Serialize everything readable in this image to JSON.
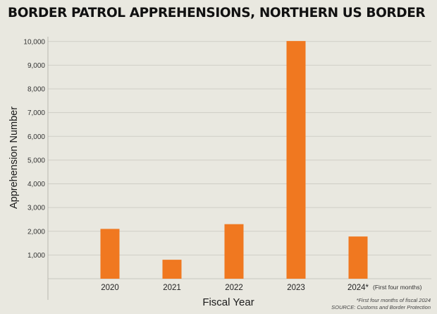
{
  "chart_data": {
    "type": "bar",
    "title": "BORDER PATROL APPREHENSIONS, NORTHERN US BORDER",
    "xlabel": "Fiscal Year",
    "ylabel": "Apprehension Number",
    "categories": [
      "2020",
      "2021",
      "2022",
      "2023",
      "2024*"
    ],
    "category_notes": [
      "",
      "",
      "",
      "",
      "(First four months)"
    ],
    "values": [
      2100,
      800,
      2300,
      10020,
      1780
    ],
    "ylim": [
      0,
      10500
    ],
    "yticks": [
      1000,
      2000,
      3000,
      4000,
      5000,
      6000,
      7000,
      8000,
      9000,
      10000
    ],
    "ytick_labels": [
      "1,000",
      "2,000",
      "3,000",
      "4,000",
      "5,000",
      "6,000",
      "7,000",
      "8,000",
      "9,000",
      "10,000"
    ],
    "bar_color": "#f07820",
    "grid": true,
    "footnotes": [
      "*First four months of fiscal 2024",
      "SOURCE: Customs and Border Protection"
    ]
  }
}
